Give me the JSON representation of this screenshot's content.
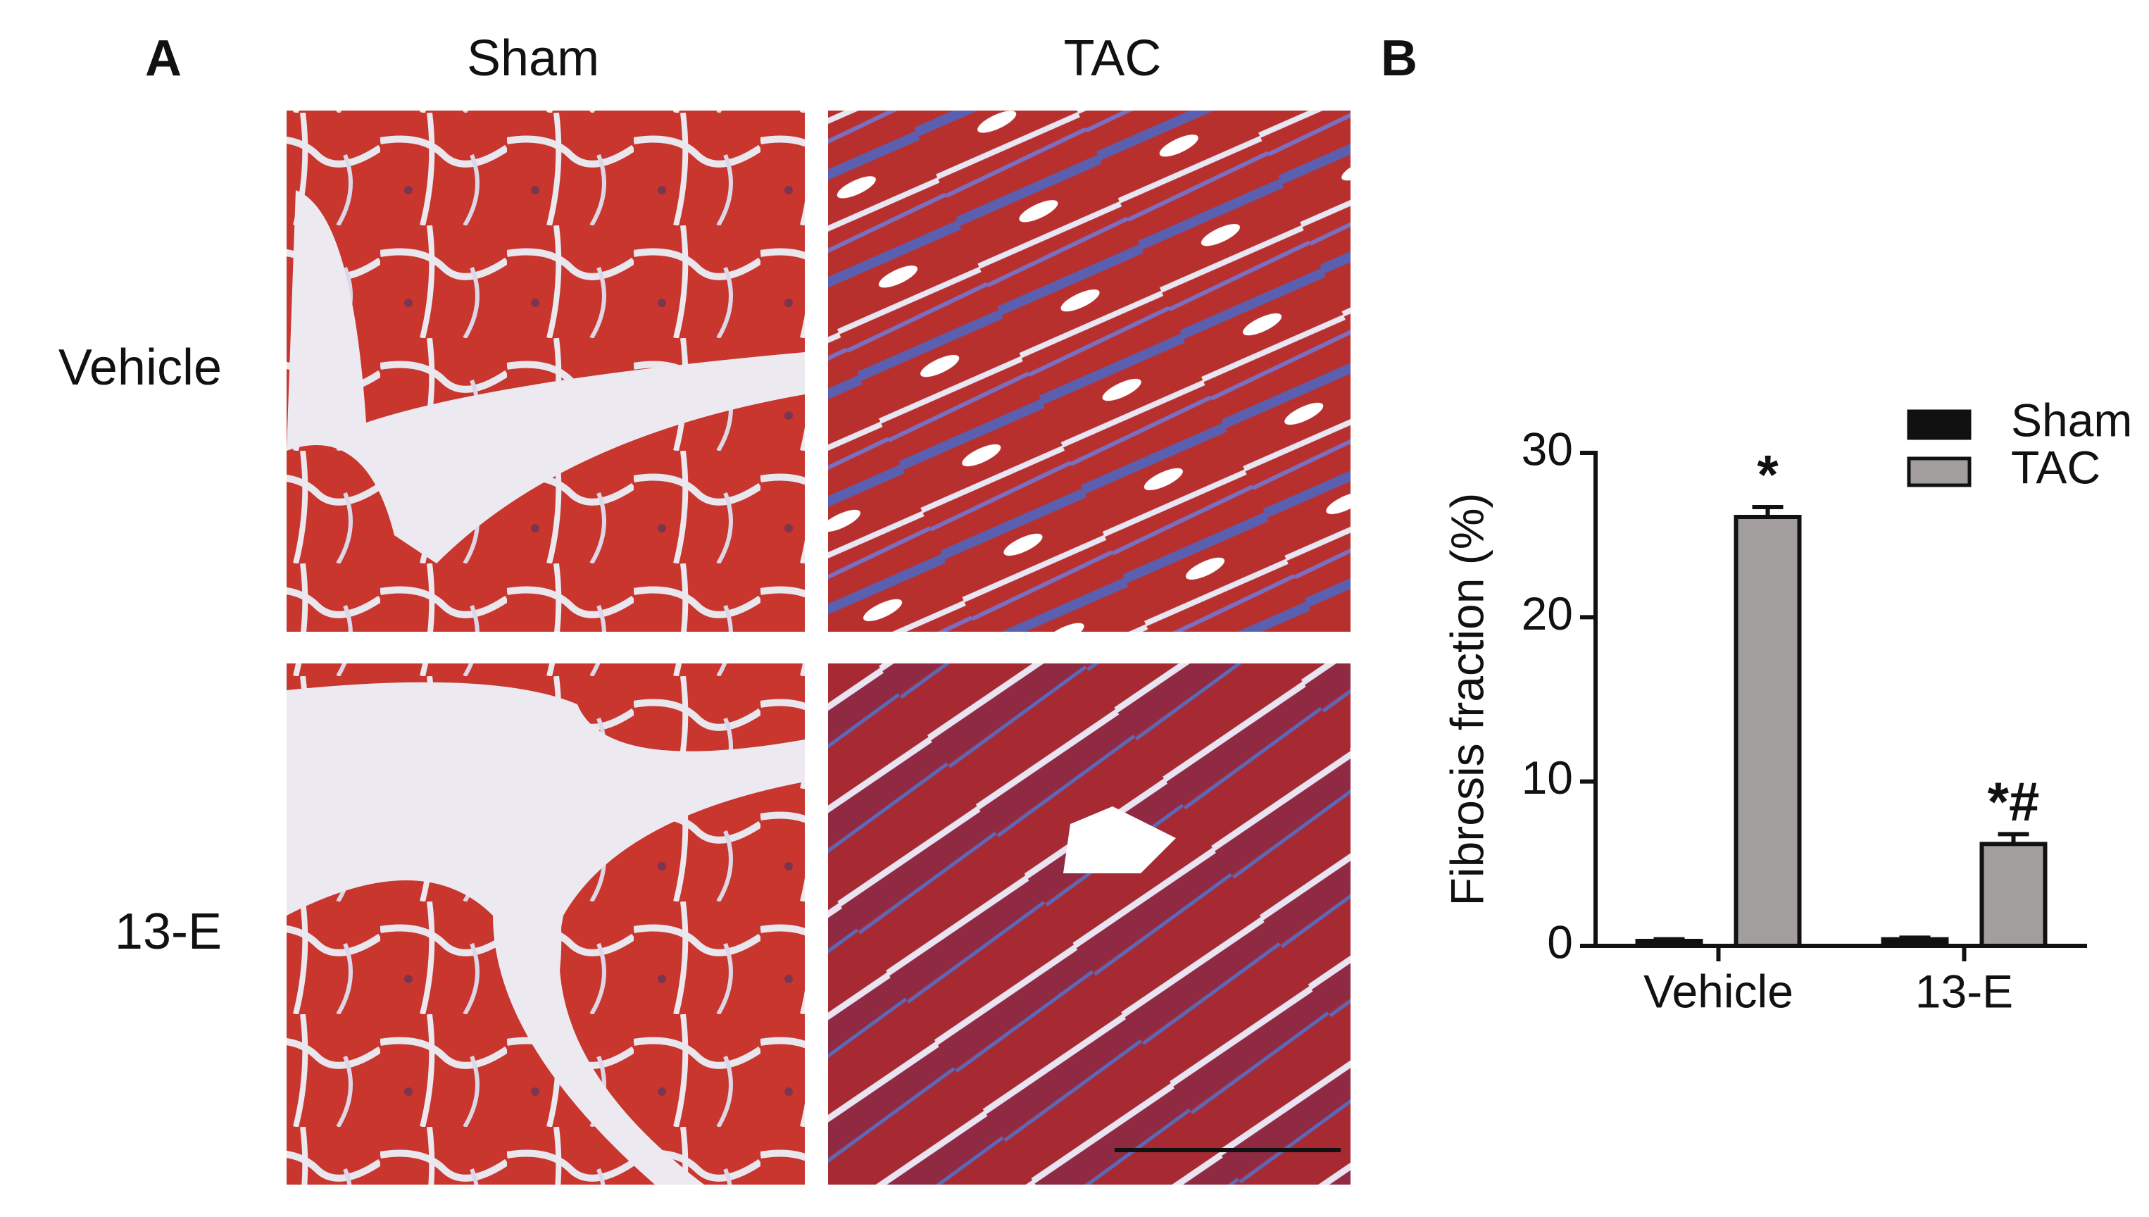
{
  "panel_labels": [
    "A",
    "B"
  ],
  "column_headers": [
    "Sham",
    "TAC"
  ],
  "row_labels": [
    "Vehicle",
    "13-E"
  ],
  "chart_data": {
    "type": "bar",
    "categories": [
      "Vehicle",
      "13-E"
    ],
    "ylabel": "Fibrosis fraction (%)",
    "ylim": [
      0,
      30
    ],
    "yticks": [
      0,
      10,
      20,
      30
    ],
    "legend": "top-right",
    "series": [
      {
        "name": "Sham",
        "color": "#111111",
        "values": [
          0.3,
          0.4
        ],
        "errors": [
          0.1,
          0.1
        ]
      },
      {
        "name": "TAC",
        "color": "#a39e9e",
        "values": [
          26.1,
          6.2
        ],
        "errors": [
          0.6,
          0.6
        ],
        "value_labels": [
          "*",
          "*#"
        ]
      }
    ]
  }
}
